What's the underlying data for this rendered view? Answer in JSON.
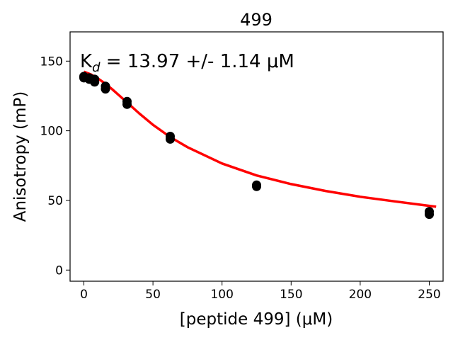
{
  "chart_data": {
    "type": "scatter",
    "title": "499",
    "xlabel": "[peptide 499] (μM)",
    "ylabel": "Anisotropy (mP)",
    "xlim": [
      -10,
      260
    ],
    "ylim": [
      -8,
      171
    ],
    "xticks": [
      0,
      50,
      100,
      150,
      200,
      250
    ],
    "yticks": [
      0,
      50,
      100,
      150
    ],
    "annotation": {
      "prefix": "K",
      "subscript": "d",
      "text": " = 13.97 +/- 1.14 μM"
    },
    "grid": false,
    "legend": "none",
    "series": [
      {
        "type": "scatter",
        "color": "#000000",
        "x": [
          0,
          0,
          3.9,
          3.9,
          7.8,
          7.8,
          15.6,
          15.6,
          31.25,
          31.25,
          62.5,
          62.5,
          125,
          125,
          250,
          250
        ],
        "y": [
          138,
          139,
          137,
          138,
          135,
          137,
          130,
          132,
          119,
          121,
          94,
          96,
          60,
          61,
          40,
          42
        ]
      },
      {
        "type": "line",
        "color": "#ff0000",
        "x": [
          0,
          5,
          10,
          15,
          20,
          30,
          40,
          50,
          62.5,
          75,
          100,
          125,
          150,
          175,
          200,
          225,
          250,
          255
        ],
        "y": [
          142.4,
          140.5,
          137.7,
          134.2,
          130.2,
          121.4,
          112.5,
          104.3,
          95.5,
          88.2,
          76.5,
          67.9,
          61.7,
          56.8,
          52.6,
          49.3,
          46.1,
          45.5
        ]
      }
    ]
  }
}
